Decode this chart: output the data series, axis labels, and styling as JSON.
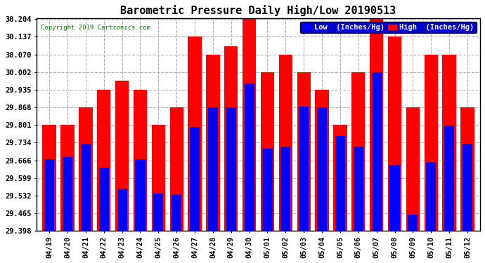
{
  "title": "Barometric Pressure Daily High/Low 20190513",
  "copyright": "Copyright 2019 Cartronics.com",
  "legend_low": "Low  (Inches/Hg)",
  "legend_high": "High  (Inches/Hg)",
  "dates": [
    "04/19",
    "04/20",
    "04/21",
    "04/22",
    "04/23",
    "04/24",
    "04/25",
    "04/26",
    "04/27",
    "04/28",
    "04/29",
    "04/30",
    "05/01",
    "05/02",
    "05/03",
    "05/04",
    "05/05",
    "05/06",
    "05/07",
    "05/08",
    "05/09",
    "05/10",
    "05/11",
    "05/12"
  ],
  "low": [
    29.67,
    29.68,
    29.73,
    29.64,
    29.56,
    29.672,
    29.54,
    29.537,
    29.795,
    29.868,
    29.868,
    29.96,
    29.71,
    29.72,
    29.87,
    29.868,
    29.76,
    29.72,
    30.002,
    29.65,
    29.46,
    29.66,
    29.8,
    29.73
  ],
  "high": [
    29.801,
    29.801,
    29.868,
    29.935,
    29.97,
    29.935,
    29.801,
    29.868,
    30.137,
    30.07,
    30.1,
    30.204,
    30.002,
    30.07,
    30.002,
    29.935,
    29.801,
    30.002,
    30.204,
    30.137,
    29.868,
    30.07,
    30.07,
    29.868
  ],
  "ymin": 29.398,
  "ymax": 30.204,
  "yticks": [
    29.398,
    29.465,
    29.532,
    29.599,
    29.666,
    29.734,
    29.801,
    29.868,
    29.935,
    30.002,
    30.07,
    30.137,
    30.204
  ],
  "bar_color_low": "#0000ff",
  "bar_color_high": "#ff0000",
  "background_color": "#ffffff",
  "grid_color": "#b0b0b0",
  "title_fontsize": 11,
  "tick_fontsize": 7.5,
  "legend_fontsize": 7.5
}
